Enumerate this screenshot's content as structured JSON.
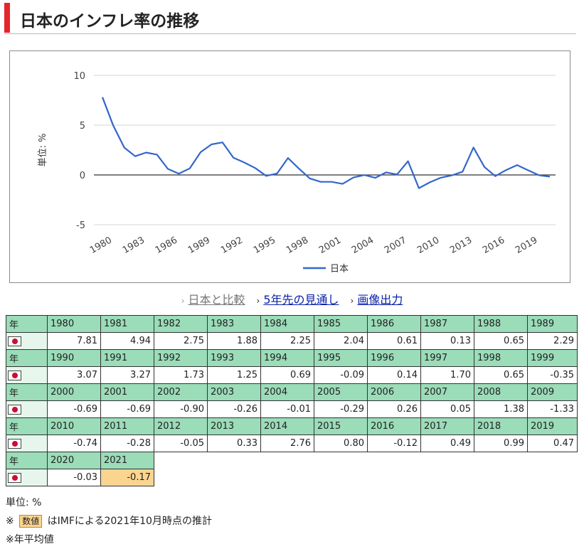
{
  "title": "日本のインフレ率の推移",
  "chart_data": {
    "type": "line",
    "ylabel": "単位: %",
    "ylim": [
      -5,
      10
    ],
    "yticks": [
      10,
      5,
      0,
      -5
    ],
    "xtick_labels": [
      "1980",
      "1983",
      "1986",
      "1989",
      "1992",
      "1995",
      "1998",
      "2001",
      "2004",
      "2007",
      "2010",
      "2013",
      "2016",
      "2019"
    ],
    "legend_position": "bottom",
    "grid": true,
    "x": [
      1980,
      1981,
      1982,
      1983,
      1984,
      1985,
      1986,
      1987,
      1988,
      1989,
      1990,
      1991,
      1992,
      1993,
      1994,
      1995,
      1996,
      1997,
      1998,
      1999,
      2000,
      2001,
      2002,
      2003,
      2004,
      2005,
      2006,
      2007,
      2008,
      2009,
      2010,
      2011,
      2012,
      2013,
      2014,
      2015,
      2016,
      2017,
      2018,
      2019,
      2020,
      2021
    ],
    "series": [
      {
        "name": "日本",
        "color": "#3366cc",
        "values": [
          7.81,
          4.94,
          2.75,
          1.88,
          2.25,
          2.04,
          0.61,
          0.13,
          0.65,
          2.29,
          3.07,
          3.27,
          1.73,
          1.25,
          0.69,
          -0.09,
          0.14,
          1.7,
          0.65,
          -0.35,
          -0.69,
          -0.69,
          -0.9,
          -0.26,
          -0.01,
          -0.29,
          0.26,
          0.05,
          1.38,
          -1.33,
          -0.74,
          -0.28,
          -0.05,
          0.33,
          2.76,
          0.8,
          -0.12,
          0.49,
          0.99,
          0.47,
          -0.03,
          -0.17
        ]
      }
    ]
  },
  "links": [
    {
      "label": "日本と比較",
      "enabled": false
    },
    {
      "label": "5年先の見通し",
      "enabled": true
    },
    {
      "label": "画像出力",
      "enabled": true
    }
  ],
  "table": {
    "year_header": "年",
    "rows": [
      {
        "years": [
          "1980",
          "1981",
          "1982",
          "1983",
          "1984",
          "1985",
          "1986",
          "1987",
          "1988",
          "1989"
        ],
        "values": [
          "7.81",
          "4.94",
          "2.75",
          "1.88",
          "2.25",
          "2.04",
          "0.61",
          "0.13",
          "0.65",
          "2.29"
        ]
      },
      {
        "years": [
          "1990",
          "1991",
          "1992",
          "1993",
          "1994",
          "1995",
          "1996",
          "1997",
          "1998",
          "1999"
        ],
        "values": [
          "3.07",
          "3.27",
          "1.73",
          "1.25",
          "0.69",
          "-0.09",
          "0.14",
          "1.70",
          "0.65",
          "-0.35"
        ]
      },
      {
        "years": [
          "2000",
          "2001",
          "2002",
          "2003",
          "2004",
          "2005",
          "2006",
          "2007",
          "2008",
          "2009"
        ],
        "values": [
          "-0.69",
          "-0.69",
          "-0.90",
          "-0.26",
          "-0.01",
          "-0.29",
          "0.26",
          "0.05",
          "1.38",
          "-1.33"
        ]
      },
      {
        "years": [
          "2010",
          "2011",
          "2012",
          "2013",
          "2014",
          "2015",
          "2016",
          "2017",
          "2018",
          "2019"
        ],
        "values": [
          "-0.74",
          "-0.28",
          "-0.05",
          "0.33",
          "2.76",
          "0.80",
          "-0.12",
          "0.49",
          "0.99",
          "0.47"
        ]
      },
      {
        "years": [
          "2020",
          "2021"
        ],
        "values": [
          "-0.03",
          "-0.17"
        ]
      }
    ],
    "estimate_years": [
      "2021"
    ]
  },
  "notes": {
    "unit": "単位: %",
    "estimate_prefix": "※",
    "estimate_badge": "数値",
    "estimate_text": "はIMFによる2021年10月時点の推計",
    "annual_avg": "※年平均値"
  },
  "colors": {
    "accent": "#e4262c",
    "table_header": "#9bdcb9",
    "estimate": "#fbd58f",
    "line": "#3366cc"
  }
}
